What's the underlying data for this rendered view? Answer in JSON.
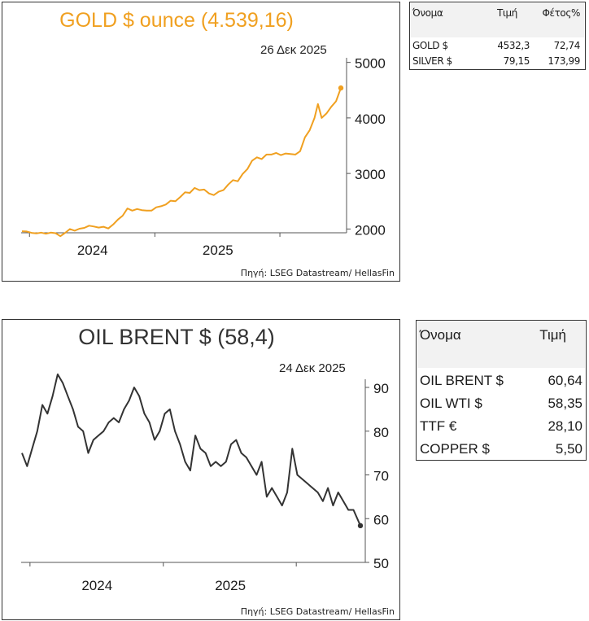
{
  "gold": {
    "title": "GOLD $ ounce (4.539,16)",
    "date": "26 Δεκ 2025",
    "source": "Πηγή: LSEG Datastream/ HellasFin",
    "color": "#f0a020"
  },
  "oil": {
    "title": "OIL BRENT $ (58,4)",
    "date": "24 Δεκ 2025",
    "source": "Πηγή: LSEG Datastream/ HellasFin",
    "color": "#333333"
  },
  "metals_table": {
    "headers": [
      "Όνομα",
      "Τιμή",
      "Φέτος%"
    ],
    "rows": [
      [
        "GOLD $",
        "4532,3",
        "72,74"
      ],
      [
        "SILVER $",
        "79,15",
        "173,99"
      ]
    ]
  },
  "energy_table": {
    "headers": [
      "Όνομα",
      "Τιμή"
    ],
    "rows": [
      [
        "OIL BRENT $",
        "60,64"
      ],
      [
        "OIL WTI $",
        "58,35"
      ],
      [
        "TTF €",
        "28,10"
      ],
      [
        "COPPER $",
        "5,50"
      ]
    ]
  },
  "chart_data": [
    {
      "type": "line",
      "title": "GOLD $ ounce (4.539,16)",
      "subtitle": "26 Δεκ 2025",
      "x_tick_labels": [
        "2024",
        "2025"
      ],
      "y_ticks": [
        2000,
        3000,
        4000,
        5000
      ],
      "ylim": [
        1800,
        5200
      ],
      "x_range": [
        "2023-06-09",
        "2025-12-26"
      ],
      "grid": false,
      "series": [
        {
          "x": [
            "2023-06-09",
            "2023-06-23",
            "2023-07-07",
            "2023-07-21",
            "2023-08-04",
            "2023-08-18",
            "2023-09-01",
            "2023-09-15",
            "2023-09-29",
            "2023-10-13",
            "2023-10-27",
            "2023-11-10",
            "2023-11-24",
            "2023-12-08",
            "2023-12-22",
            "2024-01-05",
            "2024-01-19",
            "2024-02-02",
            "2024-02-16",
            "2024-03-01",
            "2024-03-15",
            "2024-03-29",
            "2024-04-12",
            "2024-04-26",
            "2024-05-10",
            "2024-05-24",
            "2024-06-07",
            "2024-06-21",
            "2024-07-05",
            "2024-07-19",
            "2024-08-02",
            "2024-08-16",
            "2024-08-30",
            "2024-09-13",
            "2024-09-27",
            "2024-10-11",
            "2024-10-25",
            "2024-11-08",
            "2024-11-22",
            "2024-12-06",
            "2024-12-20",
            "2025-01-03",
            "2025-01-17",
            "2025-01-31",
            "2025-02-14",
            "2025-02-28",
            "2025-03-14",
            "2025-03-28",
            "2025-04-11",
            "2025-04-25",
            "2025-05-09",
            "2025-05-23",
            "2025-06-06",
            "2025-06-20",
            "2025-07-04",
            "2025-07-18",
            "2025-08-01",
            "2025-08-15",
            "2025-08-29",
            "2025-09-12",
            "2025-09-26",
            "2025-10-10",
            "2025-10-20",
            "2025-10-31",
            "2025-11-14",
            "2025-11-28",
            "2025-12-12",
            "2025-12-26"
          ],
          "values": [
            1960,
            1955,
            1930,
            1920,
            1935,
            1915,
            1935,
            1925,
            1870,
            1930,
            2000,
            1970,
            2005,
            2020,
            2060,
            2045,
            2025,
            2040,
            2010,
            2080,
            2170,
            2240,
            2370,
            2330,
            2360,
            2340,
            2330,
            2330,
            2390,
            2410,
            2440,
            2510,
            2500,
            2575,
            2660,
            2650,
            2740,
            2700,
            2710,
            2640,
            2610,
            2670,
            2700,
            2800,
            2880,
            2860,
            2990,
            3080,
            3230,
            3290,
            3260,
            3340,
            3340,
            3370,
            3330,
            3360,
            3350,
            3340,
            3400,
            3650,
            3780,
            4000,
            4250,
            4000,
            4080,
            4200,
            4300,
            4539
          ]
        }
      ]
    },
    {
      "type": "line",
      "title": "OIL BRENT $ (58,4)",
      "subtitle": "24 Δεκ 2025",
      "x_tick_labels": [
        "2024",
        "2025"
      ],
      "y_ticks": [
        50,
        60,
        70,
        80,
        90
      ],
      "ylim": [
        50,
        90
      ],
      "x_range": [
        "2023-06-09",
        "2025-12-24"
      ],
      "grid": false,
      "series": [
        {
          "x": [
            "2023-06-09",
            "2023-06-23",
            "2023-07-07",
            "2023-07-21",
            "2023-08-04",
            "2023-08-18",
            "2023-09-01",
            "2023-09-15",
            "2023-09-29",
            "2023-10-13",
            "2023-10-27",
            "2023-11-10",
            "2023-11-24",
            "2023-12-08",
            "2023-12-22",
            "2024-01-05",
            "2024-01-19",
            "2024-02-02",
            "2024-02-16",
            "2024-03-01",
            "2024-03-15",
            "2024-03-29",
            "2024-04-12",
            "2024-04-26",
            "2024-05-10",
            "2024-05-24",
            "2024-06-07",
            "2024-06-21",
            "2024-07-05",
            "2024-07-19",
            "2024-08-02",
            "2024-08-16",
            "2024-08-30",
            "2024-09-13",
            "2024-09-27",
            "2024-10-11",
            "2024-10-25",
            "2024-11-08",
            "2024-11-22",
            "2024-12-06",
            "2024-12-20",
            "2025-01-03",
            "2025-01-17",
            "2025-01-31",
            "2025-02-14",
            "2025-02-28",
            "2025-03-14",
            "2025-03-28",
            "2025-04-11",
            "2025-04-25",
            "2025-05-09",
            "2025-05-23",
            "2025-06-06",
            "2025-06-20",
            "2025-07-04",
            "2025-07-18",
            "2025-08-01",
            "2025-08-15",
            "2025-08-29",
            "2025-09-12",
            "2025-09-26",
            "2025-10-10",
            "2025-10-24",
            "2025-11-07",
            "2025-11-21",
            "2025-12-05",
            "2025-12-24"
          ],
          "values": [
            75,
            72,
            76,
            80,
            86,
            84,
            88,
            93,
            91,
            88,
            85,
            81,
            80,
            75,
            78,
            79,
            80,
            82,
            83,
            82,
            85,
            87,
            90,
            88,
            84,
            82,
            78,
            80,
            84,
            85,
            80,
            77,
            73,
            71,
            79,
            76,
            75,
            72,
            73,
            72,
            73,
            77,
            78,
            75,
            74,
            72,
            70,
            73,
            65,
            67,
            65,
            63,
            66,
            76,
            70,
            69,
            68,
            67,
            66,
            64,
            67,
            63,
            66,
            64,
            62,
            62,
            58.4
          ]
        }
      ]
    }
  ]
}
